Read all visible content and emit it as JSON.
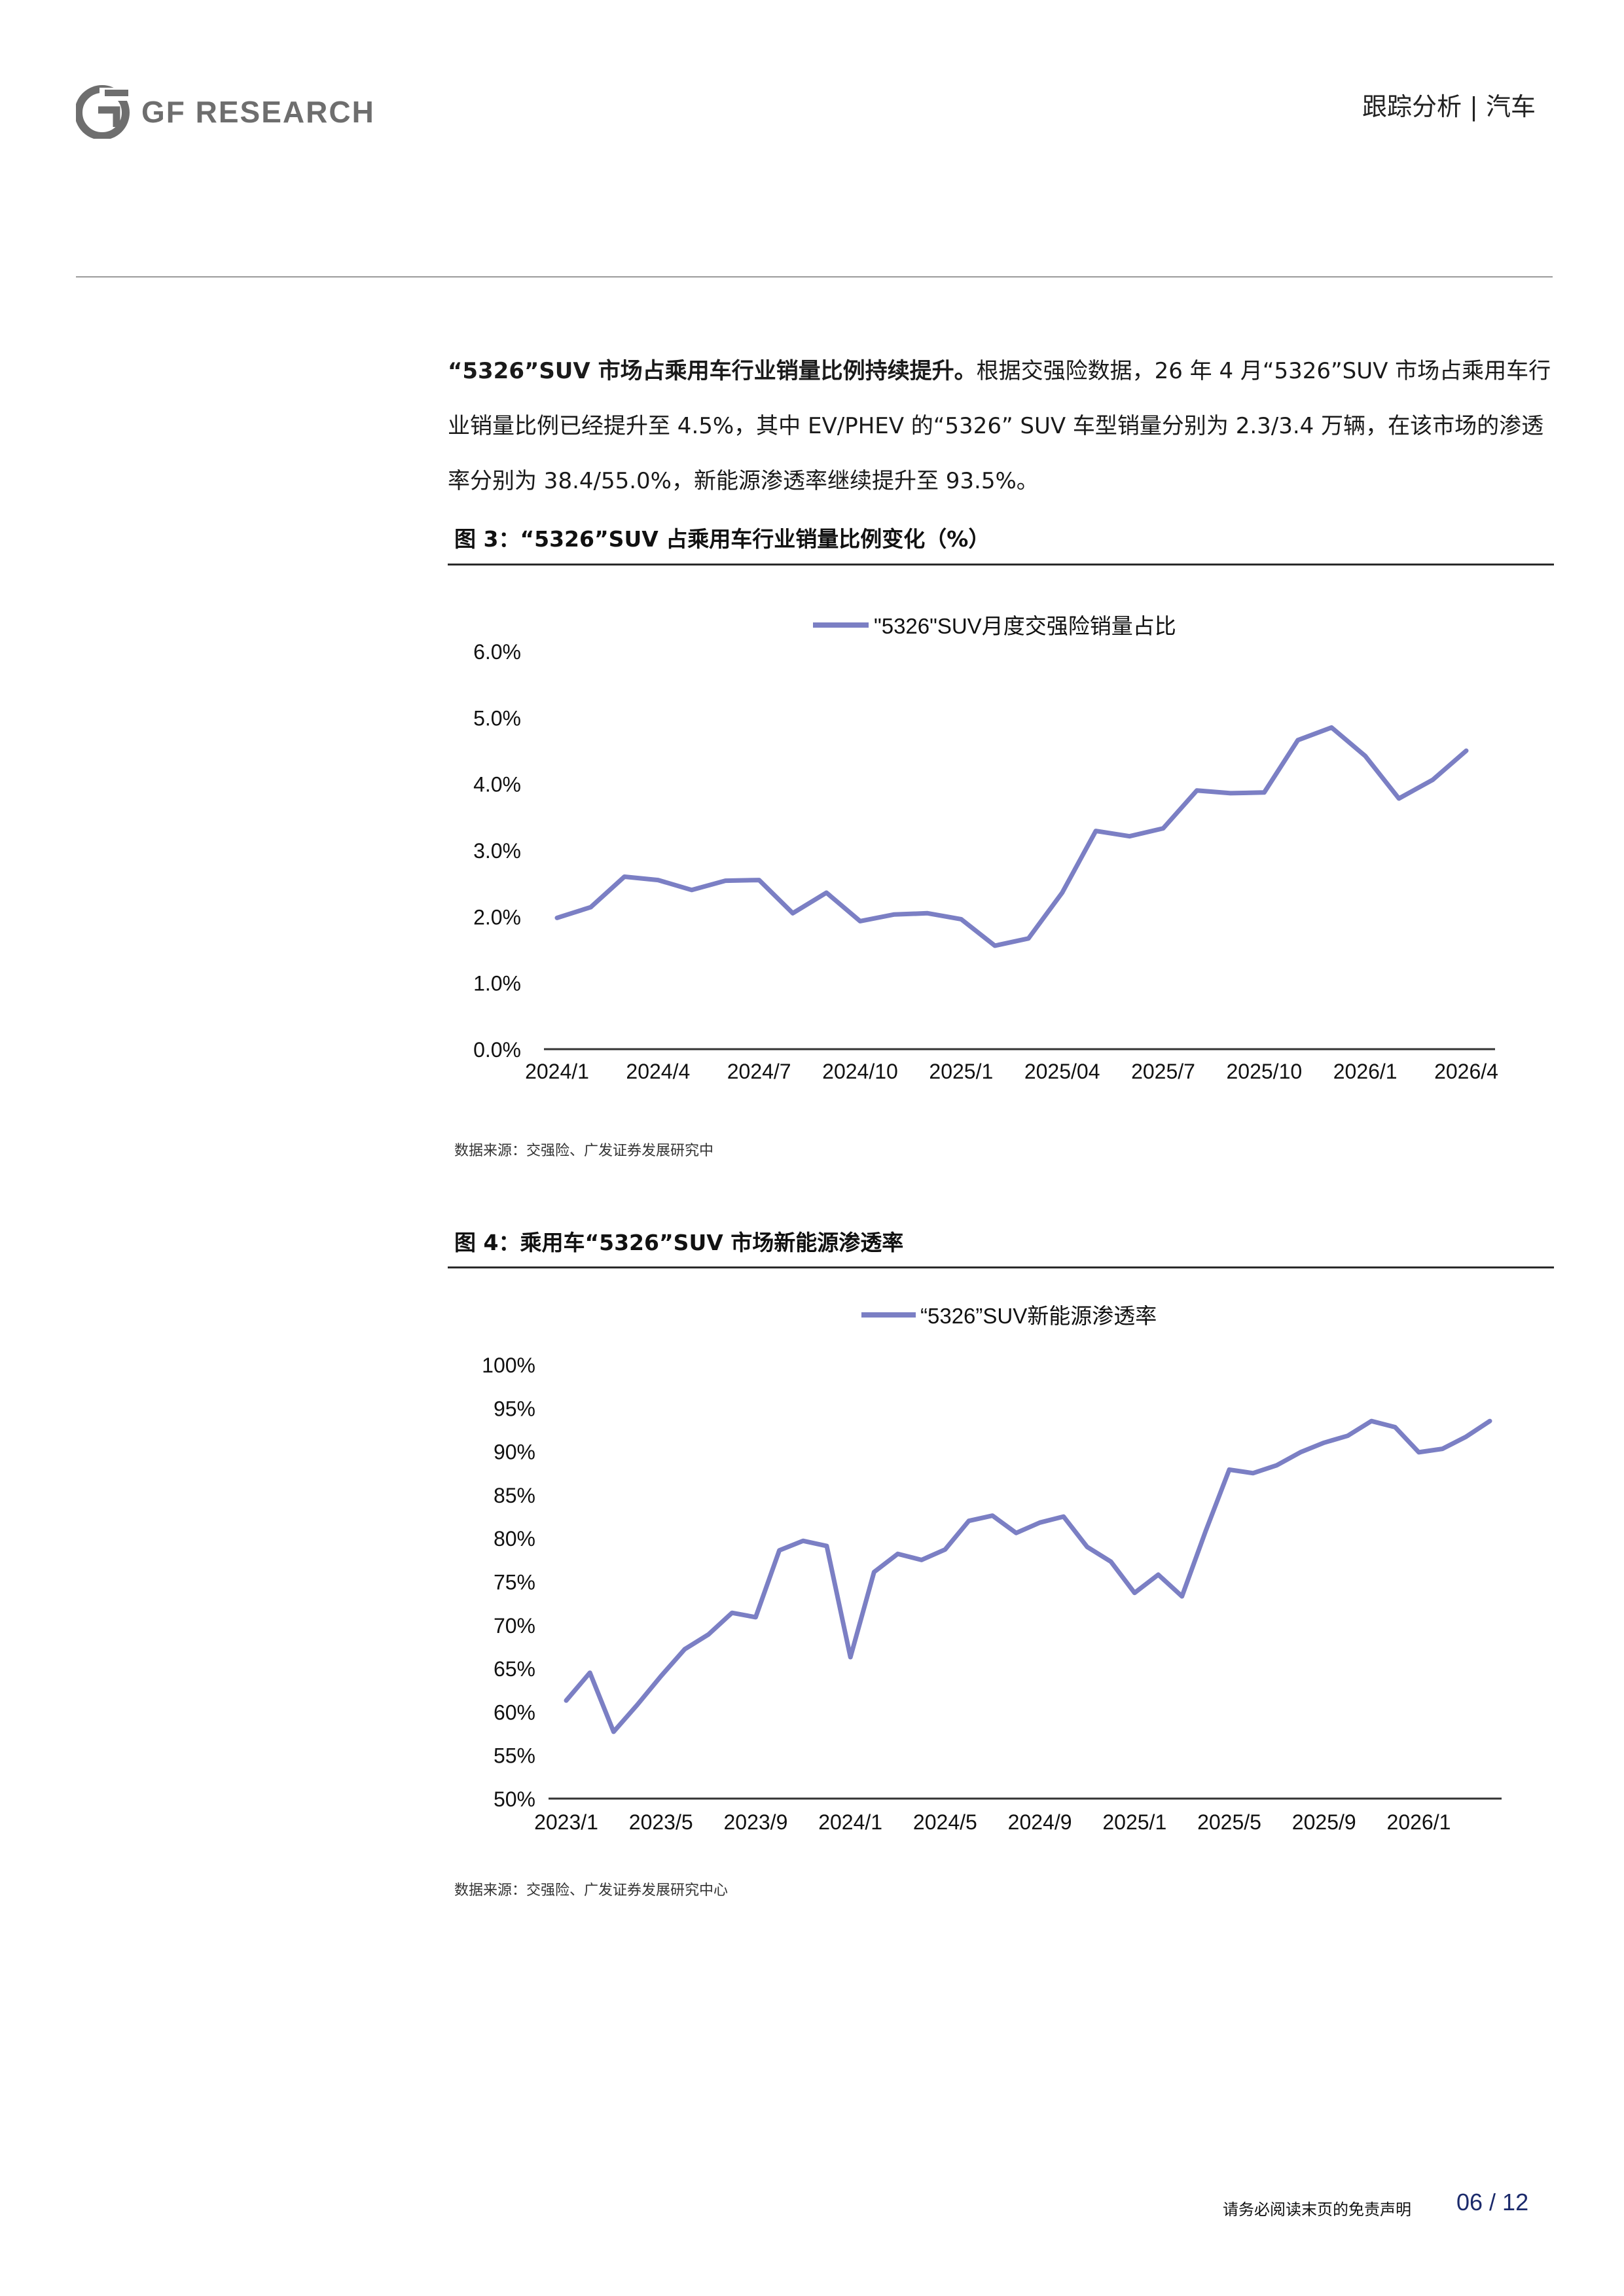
{
  "header": {
    "logo_text": "GF RESEARCH",
    "section": "跟踪分析 | 汽车"
  },
  "body": {
    "para_lead": "“5326”SUV 市场占乘用车行业销量比例持续提升。",
    "para_rest": "根据交强险数据，26 年 4 月“5326”SUV 市场占乘用车行业销量比例已经提升至 4.5%，其中 EV/PHEV 的“5326” SUV 车型销量分别为 2.3/3.4 万辆，在该市场的渗透率分别为 38.4/55.0%，新能源渗透率继续提升至 93.5%。"
  },
  "figures": [
    {
      "title": "图 3：“5326”SUV 占乘用车行业销量比例变化（%）",
      "source": "数据来源：交强险、广发证券发展研究中"
    },
    {
      "title": "图 4：乘用车“5326”SUV 市场新能源渗透率",
      "source": "数据来源：交强险、广发证券发展研究中心"
    }
  ],
  "chart_data": [
    {
      "type": "line",
      "legend": "\"5326\"SUV月度交强险销量占比",
      "color": "#7b7fc4",
      "y_ticks": [
        "0.0%",
        "1.0%",
        "2.0%",
        "3.0%",
        "4.0%",
        "5.0%",
        "6.0%"
      ],
      "ylim": [
        0,
        6
      ],
      "x_ticks": [
        "2024/1",
        "2024/4",
        "2024/7",
        "2024/10",
        "2025/1",
        "2025/04",
        "2025/7",
        "2025/10",
        "2026/1",
        "2026/4"
      ],
      "x": [
        "2024/1",
        "2024/2",
        "2024/3",
        "2024/4",
        "2024/5",
        "2024/6",
        "2024/7",
        "2024/8",
        "2024/9",
        "2024/10",
        "2024/11",
        "2024/12",
        "2025/1",
        "2025/2",
        "2025/3",
        "2025/4",
        "2025/5",
        "2025/6",
        "2025/7",
        "2025/8",
        "2025/9",
        "2025/10",
        "2025/11",
        "2025/12",
        "2026/1",
        "2026/2",
        "2026/3",
        "2026/4"
      ],
      "series": [
        {
          "name": "\"5326\"SUV月度交强险销量占比",
          "values": [
            1.98,
            2.14,
            2.6,
            2.55,
            2.4,
            2.54,
            2.55,
            2.05,
            2.36,
            1.93,
            2.03,
            2.05,
            1.96,
            1.56,
            1.67,
            2.36,
            3.29,
            3.21,
            3.33,
            3.9,
            3.86,
            3.87,
            4.66,
            4.85,
            4.42,
            3.78,
            4.06,
            4.5
          ]
        }
      ]
    },
    {
      "type": "line",
      "legend": "“5326”SUV新能源渗透率",
      "color": "#7b7fc4",
      "y_ticks": [
        "50%",
        "55%",
        "60%",
        "65%",
        "70%",
        "75%",
        "80%",
        "85%",
        "90%",
        "95%",
        "100%"
      ],
      "ylim": [
        50,
        100
      ],
      "x_ticks": [
        "2023/1",
        "2023/5",
        "2023/9",
        "2024/1",
        "2024/5",
        "2024/9",
        "2025/1",
        "2025/5",
        "2025/9",
        "2026/1"
      ],
      "x": [
        "2023/1",
        "2023/2",
        "2023/3",
        "2023/4",
        "2023/5",
        "2023/6",
        "2023/7",
        "2023/8",
        "2023/9",
        "2023/10",
        "2023/11",
        "2023/12",
        "2024/1",
        "2024/2",
        "2024/3",
        "2024/4",
        "2024/5",
        "2024/6",
        "2024/7",
        "2024/8",
        "2024/9",
        "2024/10",
        "2024/11",
        "2024/12",
        "2025/1",
        "2025/2",
        "2025/3",
        "2025/4",
        "2025/5",
        "2025/6",
        "2025/7",
        "2025/8",
        "2025/9",
        "2025/10",
        "2025/11",
        "2025/12",
        "2026/1",
        "2026/2",
        "2026/3",
        "2026/4"
      ],
      "series": [
        {
          "name": "“5326”SUV新能源渗透率",
          "values": [
            61.3,
            64.5,
            57.7,
            60.8,
            64.1,
            67.2,
            68.9,
            71.4,
            70.9,
            78.6,
            79.7,
            79.1,
            66.3,
            76.1,
            78.2,
            77.5,
            78.7,
            82.0,
            82.6,
            80.6,
            81.8,
            82.5,
            79.0,
            77.3,
            73.7,
            75.8,
            73.3,
            80.8,
            87.9,
            87.5,
            88.4,
            89.9,
            91.0,
            91.8,
            93.5,
            92.8,
            89.9,
            90.3,
            91.7,
            93.5
          ]
        }
      ]
    }
  ],
  "footer": {
    "disclaimer": "请务必阅读末页的免责声明",
    "page": "06 / 12"
  }
}
